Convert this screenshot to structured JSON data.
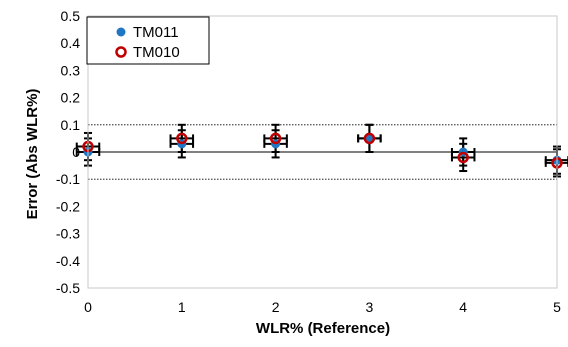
{
  "chart_data": {
    "type": "scatter",
    "title": "",
    "xlabel": "WLR% (Reference)",
    "ylabel": "Error (Abs WLR%)",
    "xlim": [
      0,
      5
    ],
    "ylim": [
      -0.5,
      0.5
    ],
    "x_ticks": [
      "0",
      "1",
      "2",
      "3",
      "4",
      "5"
    ],
    "y_ticks": [
      "0.5",
      "0.4",
      "0.3",
      "0.2",
      "0.1",
      "0",
      "-0.1",
      "-0.2",
      "-0.3",
      "-0.4",
      "-0.5"
    ],
    "grid": false,
    "legend_position": "top-left",
    "reference_lines": [
      0.1,
      0,
      -0.1
    ],
    "series": [
      {
        "name": "TM011",
        "marker": "filled-circle",
        "color": "#1f77c4",
        "x": [
          0,
          1,
          2,
          3,
          4,
          5
        ],
        "y": [
          0.0,
          0.03,
          0.03,
          0.05,
          0.0,
          -0.03
        ],
        "y_err": [
          0.05,
          0.05,
          0.05,
          0.05,
          0.05,
          0.05
        ],
        "x_err": [
          0.12,
          0.12,
          0.12,
          0.12,
          0.12,
          0.12
        ]
      },
      {
        "name": "TM010",
        "marker": "hollow-circle",
        "color": "#c00000",
        "x": [
          0,
          1,
          2,
          3,
          4,
          5
        ],
        "y": [
          0.02,
          0.05,
          0.05,
          0.05,
          -0.02,
          -0.04
        ],
        "y_err": [
          0.05,
          0.05,
          0.05,
          0.05,
          0.05,
          0.05
        ],
        "x_err": [
          0.12,
          0.12,
          0.12,
          0.12,
          0.12,
          0.12
        ]
      }
    ]
  }
}
